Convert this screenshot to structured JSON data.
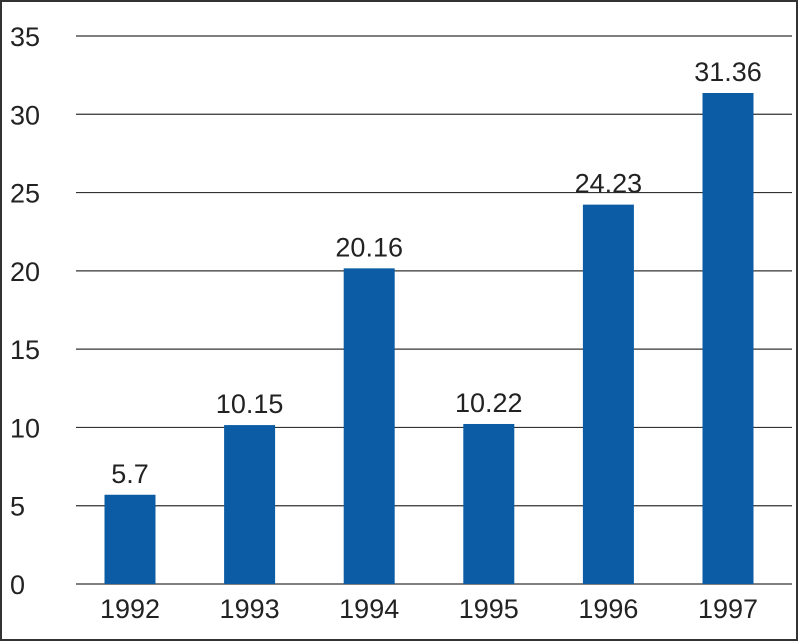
{
  "chart_data": {
    "type": "bar",
    "categories": [
      "1992",
      "1993",
      "1994",
      "1995",
      "1996",
      "1997"
    ],
    "values": [
      5.7,
      10.15,
      20.16,
      10.22,
      24.23,
      31.36
    ],
    "data_labels": [
      "5.7",
      "10.15",
      "20.16",
      "10.22",
      "24.23",
      "31.36"
    ],
    "title": "",
    "xlabel": "",
    "ylabel": "",
    "ylim": [
      0,
      35
    ],
    "yticks": [
      "0",
      "5",
      "10",
      "15",
      "20",
      "25",
      "30",
      "35"
    ],
    "grid": true,
    "legend": "none",
    "colors": {
      "bar": "#0B5CA5",
      "grid": "#333333",
      "text": "#222222"
    }
  }
}
